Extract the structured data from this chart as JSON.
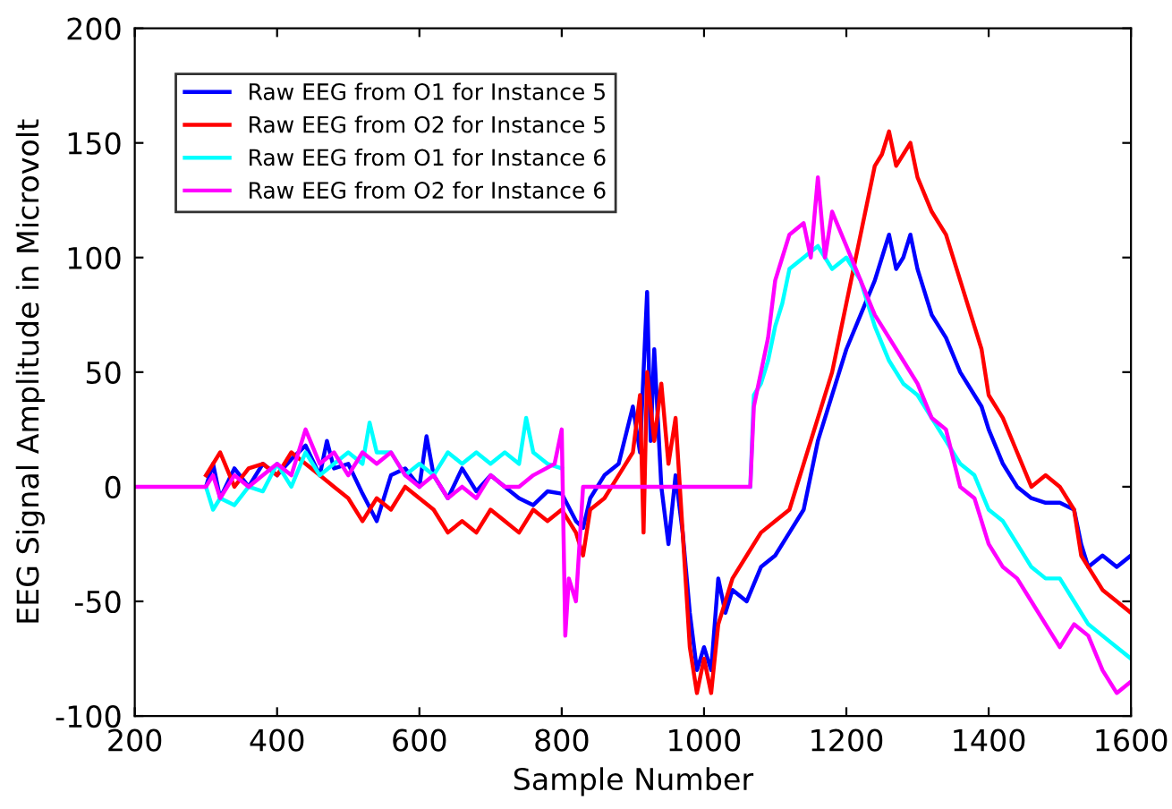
{
  "chart_data": {
    "type": "line",
    "xlabel": "Sample Number",
    "ylabel": "EEG Signal Amplitude in Microvolt",
    "xlim": [
      200,
      1600
    ],
    "ylim": [
      -100,
      200
    ],
    "xticks": [
      200,
      400,
      600,
      800,
      1000,
      1200,
      1400,
      1600
    ],
    "yticks": [
      -100,
      -50,
      0,
      50,
      100,
      150,
      200
    ],
    "grid": false,
    "legend": "top left",
    "line_style": "solid",
    "marker": "none",
    "series": [
      {
        "name": "Raw EEG from O1 for Instance 5",
        "color": "#0000ff",
        "x": [
          300,
          310,
          320,
          340,
          360,
          380,
          400,
          420,
          440,
          460,
          470,
          480,
          500,
          520,
          540,
          560,
          580,
          600,
          610,
          620,
          640,
          660,
          680,
          700,
          720,
          740,
          760,
          780,
          800,
          820,
          830,
          840,
          860,
          880,
          900,
          910,
          920,
          925,
          930,
          940,
          950,
          960,
          970,
          980,
          990,
          1000,
          1010,
          1020,
          1030,
          1040,
          1060,
          1080,
          1100,
          1120,
          1140,
          1160,
          1180,
          1200,
          1220,
          1240,
          1250,
          1260,
          1270,
          1280,
          1290,
          1300,
          1320,
          1340,
          1360,
          1380,
          1390,
          1400,
          1420,
          1440,
          1460,
          1480,
          1500,
          1520,
          1530,
          1540,
          1560,
          1580,
          1600
        ],
        "values": [
          0,
          10,
          -5,
          8,
          0,
          10,
          5,
          12,
          18,
          5,
          20,
          8,
          10,
          -3,
          -15,
          5,
          8,
          0,
          22,
          5,
          -5,
          8,
          -2,
          5,
          0,
          -5,
          -8,
          -2,
          -3,
          -15,
          -18,
          -5,
          5,
          10,
          35,
          15,
          85,
          20,
          60,
          0,
          -25,
          5,
          -20,
          -55,
          -80,
          -70,
          -80,
          -40,
          -55,
          -45,
          -50,
          -35,
          -30,
          -20,
          -10,
          20,
          40,
          60,
          75,
          90,
          100,
          110,
          95,
          100,
          110,
          95,
          75,
          65,
          50,
          40,
          35,
          25,
          10,
          0,
          -5,
          -7,
          -7,
          -10,
          -25,
          -35,
          -30,
          -35,
          -30
        ]
      },
      {
        "name": "Raw EEG from O2 for Instance 5",
        "color": "#ff0000",
        "x": [
          300,
          320,
          340,
          360,
          380,
          400,
          420,
          440,
          460,
          480,
          500,
          520,
          540,
          560,
          580,
          600,
          620,
          640,
          660,
          680,
          700,
          720,
          740,
          760,
          780,
          800,
          820,
          830,
          840,
          860,
          880,
          900,
          910,
          915,
          920,
          930,
          940,
          950,
          960,
          970,
          980,
          990,
          1000,
          1010,
          1020,
          1040,
          1060,
          1080,
          1100,
          1120,
          1140,
          1160,
          1180,
          1200,
          1220,
          1240,
          1250,
          1260,
          1270,
          1280,
          1290,
          1300,
          1320,
          1340,
          1360,
          1380,
          1390,
          1400,
          1420,
          1440,
          1460,
          1480,
          1500,
          1520,
          1530,
          1540,
          1560,
          1580,
          1600
        ],
        "values": [
          5,
          15,
          0,
          8,
          10,
          5,
          15,
          10,
          5,
          0,
          -5,
          -15,
          -5,
          -10,
          0,
          -5,
          -10,
          -20,
          -15,
          -20,
          -10,
          -15,
          -20,
          -10,
          -15,
          -10,
          -20,
          -30,
          -10,
          -5,
          5,
          15,
          40,
          -20,
          50,
          20,
          45,
          10,
          30,
          -20,
          -70,
          -90,
          -75,
          -90,
          -60,
          -40,
          -30,
          -20,
          -15,
          -10,
          10,
          30,
          50,
          80,
          110,
          140,
          145,
          155,
          140,
          145,
          150,
          135,
          120,
          110,
          90,
          70,
          60,
          40,
          30,
          15,
          0,
          5,
          0,
          -10,
          -30,
          -35,
          -45,
          -50,
          -55
        ]
      },
      {
        "name": "Raw EEG from O1 for Instance 6",
        "color": "#00ffff",
        "x": [
          300,
          310,
          320,
          340,
          360,
          380,
          400,
          420,
          440,
          460,
          480,
          500,
          520,
          530,
          540,
          560,
          580,
          600,
          620,
          640,
          660,
          680,
          700,
          720,
          740,
          750,
          760,
          780,
          800,
          900,
          1065,
          1070,
          1080,
          1090,
          1100,
          1110,
          1120,
          1140,
          1160,
          1180,
          1200,
          1220,
          1230,
          1240,
          1260,
          1280,
          1300,
          1320,
          1340,
          1360,
          1380,
          1400,
          1420,
          1440,
          1460,
          1480,
          1500,
          1520,
          1540,
          1560,
          1580,
          1600
        ],
        "values": [
          0,
          -10,
          -5,
          -8,
          0,
          -2,
          10,
          0,
          15,
          5,
          10,
          15,
          10,
          28,
          15,
          15,
          5,
          10,
          5,
          15,
          10,
          15,
          10,
          15,
          10,
          30,
          15,
          10,
          8,
          null,
          0,
          40,
          45,
          55,
          70,
          80,
          95,
          100,
          105,
          95,
          100,
          90,
          80,
          70,
          55,
          45,
          40,
          30,
          20,
          10,
          5,
          -10,
          -15,
          -25,
          -35,
          -40,
          -40,
          -50,
          -60,
          -65,
          -70,
          -75
        ]
      },
      {
        "name": "Raw EEG from O2 for Instance 6",
        "color": "#ff00ff",
        "x": [
          200,
          300,
          310,
          320,
          340,
          360,
          380,
          400,
          420,
          440,
          460,
          480,
          500,
          520,
          540,
          560,
          580,
          600,
          620,
          640,
          660,
          680,
          700,
          720,
          740,
          760,
          790,
          800,
          805,
          810,
          820,
          830,
          1065,
          1070,
          1080,
          1090,
          1100,
          1110,
          1120,
          1140,
          1150,
          1160,
          1170,
          1180,
          1200,
          1220,
          1240,
          1260,
          1280,
          1300,
          1320,
          1340,
          1360,
          1380,
          1400,
          1420,
          1440,
          1460,
          1480,
          1500,
          1520,
          1540,
          1560,
          1580,
          1600
        ],
        "values": [
          0,
          0,
          5,
          -5,
          5,
          0,
          5,
          10,
          5,
          25,
          10,
          15,
          5,
          15,
          10,
          15,
          5,
          0,
          5,
          -5,
          0,
          -5,
          5,
          0,
          0,
          5,
          10,
          25,
          -65,
          -40,
          -50,
          0,
          0,
          35,
          50,
          65,
          90,
          100,
          110,
          115,
          100,
          135,
          100,
          120,
          105,
          90,
          75,
          65,
          55,
          45,
          30,
          25,
          0,
          -5,
          -25,
          -35,
          -40,
          -50,
          -60,
          -70,
          -60,
          -65,
          -80,
          -90,
          -85
        ]
      }
    ]
  }
}
